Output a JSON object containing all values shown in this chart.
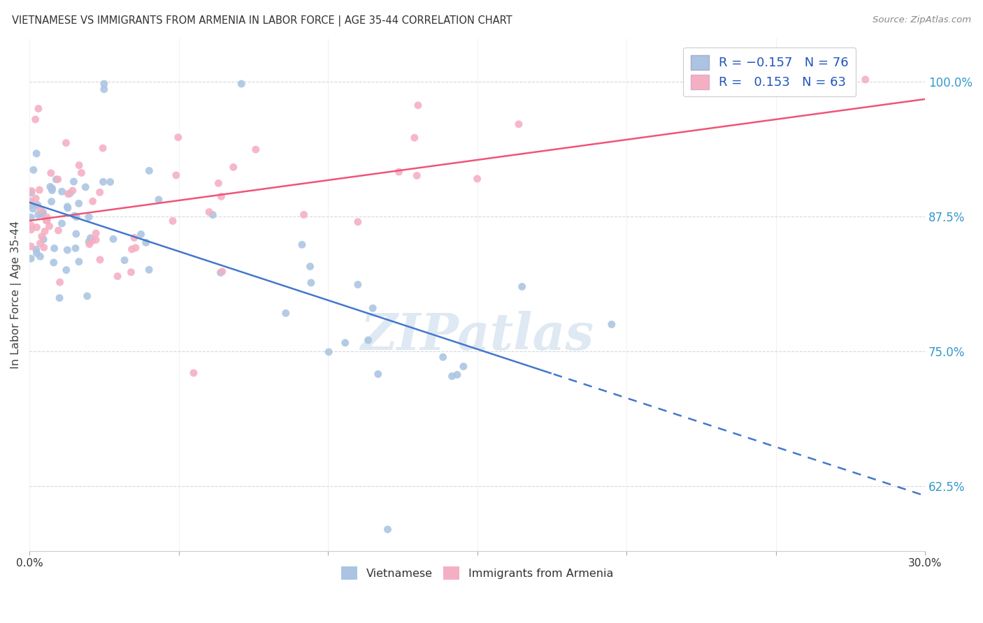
{
  "title": "VIETNAMESE VS IMMIGRANTS FROM ARMENIA IN LABOR FORCE | AGE 35-44 CORRELATION CHART",
  "source": "Source: ZipAtlas.com",
  "ylabel": "In Labor Force | Age 35-44",
  "yticks": [
    "62.5%",
    "75.0%",
    "87.5%",
    "100.0%"
  ],
  "ytick_vals": [
    0.625,
    0.75,
    0.875,
    1.0
  ],
  "xlim": [
    0.0,
    0.3
  ],
  "ylim": [
    0.565,
    1.04
  ],
  "r_blue": -0.157,
  "n_blue": 76,
  "r_pink": 0.153,
  "n_pink": 63,
  "legend_labels": [
    "Vietnamese",
    "Immigrants from Armenia"
  ],
  "blue_color": "#aac4e2",
  "pink_color": "#f5afc2",
  "blue_line_color": "#4477cc",
  "pink_line_color": "#ee5577",
  "line_cutoff": 0.175,
  "watermark": "ZIPatlas",
  "background_color": "#ffffff",
  "grid_color": "#d8d8d8"
}
